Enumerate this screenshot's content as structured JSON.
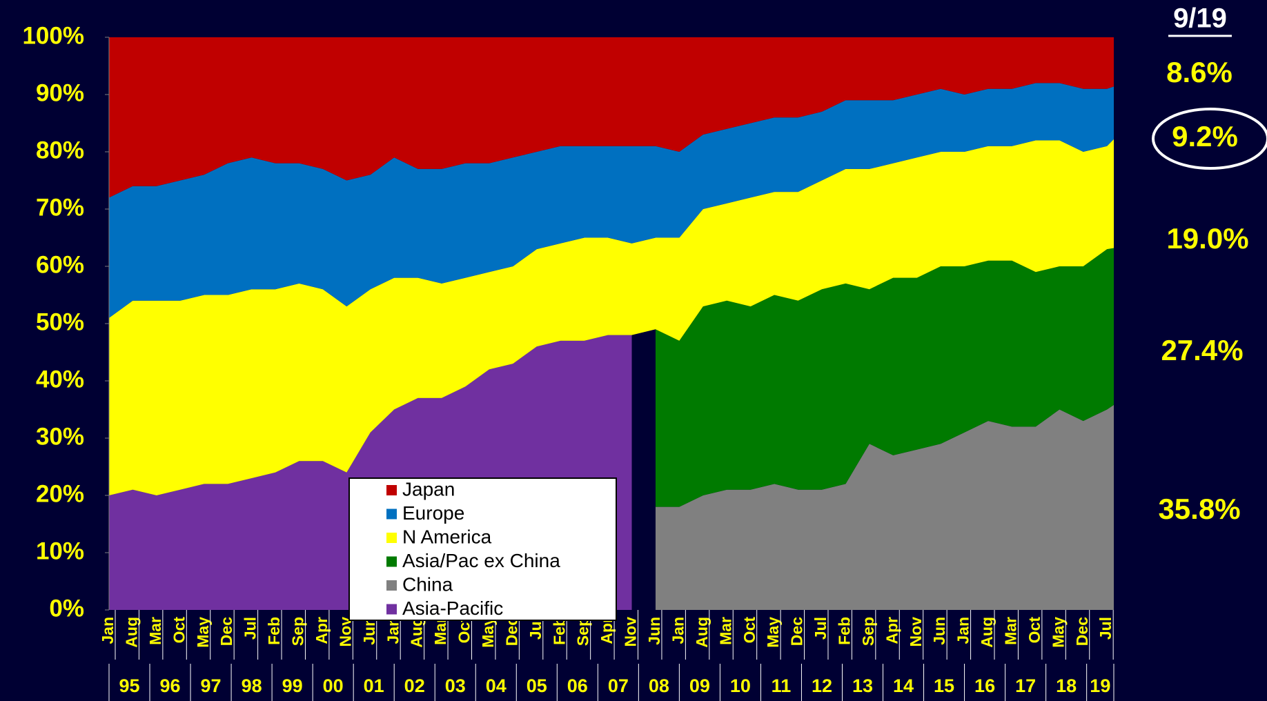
{
  "chart_data": {
    "type": "stacked_area",
    "yticks": [
      {
        "value": 0,
        "label": "0%"
      },
      {
        "value": 10,
        "label": "10%"
      },
      {
        "value": 20,
        "label": "20%"
      },
      {
        "value": 30,
        "label": "30%"
      },
      {
        "value": 40,
        "label": "40%"
      },
      {
        "value": 50,
        "label": "50%"
      },
      {
        "value": 60,
        "label": "60%"
      },
      {
        "value": 70,
        "label": "70%"
      },
      {
        "value": 80,
        "label": "80%"
      },
      {
        "value": 90,
        "label": "90%"
      },
      {
        "value": 100,
        "label": "100%"
      }
    ],
    "ylim": [
      0,
      100
    ],
    "categories": [
      "Jan",
      "Aug",
      "Mar",
      "Oct",
      "May",
      "Dec",
      "Jul",
      "Feb",
      "Sep",
      "Apr",
      "Nov",
      "Jun",
      "Jan",
      "Aug",
      "Mar",
      "Oct",
      "May",
      "Dec",
      "Jul",
      "Feb",
      "Sep",
      "Apr",
      "Nov",
      "Jun",
      "Jan",
      "Aug",
      "Mar",
      "Oct",
      "May",
      "Dec",
      "Jul",
      "Feb",
      "Sep",
      "Apr",
      "Nov",
      "Jun",
      "Jan",
      "Aug",
      "Mar",
      "Oct",
      "May",
      "Dec",
      "Jul",
      null
    ],
    "year_labels": [
      "95",
      "96",
      "97",
      "98",
      "99",
      "00",
      "01",
      "02",
      "03",
      "04",
      "05",
      "06",
      "07",
      "08",
      "09",
      "10",
      "11",
      "12",
      "13",
      "14",
      "15",
      "16",
      "17",
      "18",
      "19"
    ],
    "series": [
      {
        "name": "Japan",
        "color": "#c00000",
        "values": [
          28,
          26,
          26,
          25,
          24,
          22,
          21,
          22,
          22,
          23,
          25,
          24,
          21,
          23,
          23,
          22,
          22,
          21,
          20,
          19,
          19,
          19,
          19,
          19,
          20,
          17,
          16,
          15,
          14,
          14,
          13,
          11,
          11,
          11,
          10,
          9,
          10,
          9,
          9,
          8,
          8,
          9,
          9,
          8.6
        ]
      },
      {
        "name": "Europe",
        "color": "#0070c0",
        "values": [
          21,
          20,
          20,
          21,
          21,
          23,
          23,
          22,
          21,
          21,
          22,
          20,
          21,
          19,
          20,
          20,
          19,
          19,
          17,
          17,
          16,
          16,
          17,
          16,
          15,
          13,
          13,
          13,
          13,
          13,
          12,
          12,
          12,
          11,
          11,
          11,
          10,
          10,
          10,
          10,
          10,
          11,
          10,
          9.2
        ]
      },
      {
        "name": "N America",
        "color": "#ffff00",
        "values": [
          31,
          33,
          34,
          33,
          33,
          33,
          33,
          32,
          31,
          30,
          29,
          25,
          23,
          21,
          20,
          19,
          17,
          17,
          17,
          17,
          18,
          17,
          16,
          16,
          18,
          17,
          17,
          19,
          18,
          19,
          19,
          20,
          21,
          20,
          21,
          20,
          20,
          20,
          20,
          23,
          22,
          20,
          18,
          19.0
        ]
      },
      {
        "name": "Asia/Pac ex China",
        "color": "#007a00",
        "values": [
          null,
          null,
          null,
          null,
          null,
          null,
          null,
          null,
          null,
          null,
          null,
          null,
          null,
          null,
          null,
          null,
          null,
          null,
          null,
          null,
          null,
          null,
          null,
          31,
          29,
          33,
          33,
          32,
          33,
          33,
          35,
          35,
          27,
          31,
          30,
          31,
          29,
          28,
          29,
          27,
          25,
          27,
          28,
          27.4
        ]
      },
      {
        "name": "China",
        "color": "#808080",
        "values": [
          null,
          null,
          null,
          null,
          null,
          null,
          null,
          null,
          null,
          null,
          null,
          null,
          null,
          null,
          null,
          null,
          null,
          null,
          null,
          null,
          null,
          null,
          null,
          18,
          18,
          20,
          21,
          21,
          22,
          21,
          21,
          22,
          29,
          27,
          28,
          29,
          31,
          33,
          32,
          32,
          35,
          33,
          35,
          35.8
        ]
      },
      {
        "name": "Asia-Pacific",
        "color": "#7030a0",
        "values": [
          20,
          21,
          20,
          21,
          22,
          22,
          23,
          24,
          26,
          26,
          24,
          31,
          35,
          37,
          37,
          39,
          42,
          43,
          46,
          47,
          47,
          48,
          48,
          null,
          null,
          null,
          null,
          null,
          null,
          null,
          null,
          null,
          null,
          null,
          null,
          null,
          null,
          null,
          null,
          null,
          null,
          null,
          null,
          null
        ]
      }
    ],
    "right_header": "9/19",
    "right_labels": [
      "8.6%",
      "9.2%",
      "19.0%",
      "27.4%",
      "35.8%"
    ]
  }
}
